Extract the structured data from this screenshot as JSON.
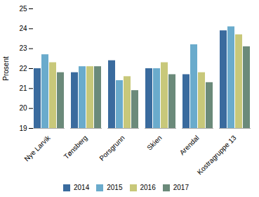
{
  "chart_data": {
    "type": "bar",
    "categories": [
      "Nye Larvik",
      "Tønsberg",
      "Porsgrunn",
      "Skien",
      "Arendal",
      "Kostragruppe 13"
    ],
    "series": [
      {
        "name": "2014",
        "color": "#3a6b9e",
        "values": [
          22.0,
          21.8,
          22.4,
          22.0,
          21.7,
          23.9
        ]
      },
      {
        "name": "2015",
        "color": "#6aabcc",
        "values": [
          22.7,
          22.1,
          21.4,
          22.0,
          23.2,
          24.1
        ]
      },
      {
        "name": "2016",
        "color": "#c8c87a",
        "values": [
          22.3,
          22.1,
          21.6,
          22.3,
          21.8,
          23.7
        ]
      },
      {
        "name": "2017",
        "color": "#6b8a7a",
        "values": [
          21.8,
          22.1,
          20.9,
          21.7,
          21.3,
          23.1
        ]
      }
    ],
    "ylabel": "Prosent",
    "ylim": [
      19,
      25
    ],
    "yticks": [
      19,
      20,
      21,
      22,
      23,
      24,
      25
    ],
    "grid": false,
    "legend": "lower center"
  }
}
